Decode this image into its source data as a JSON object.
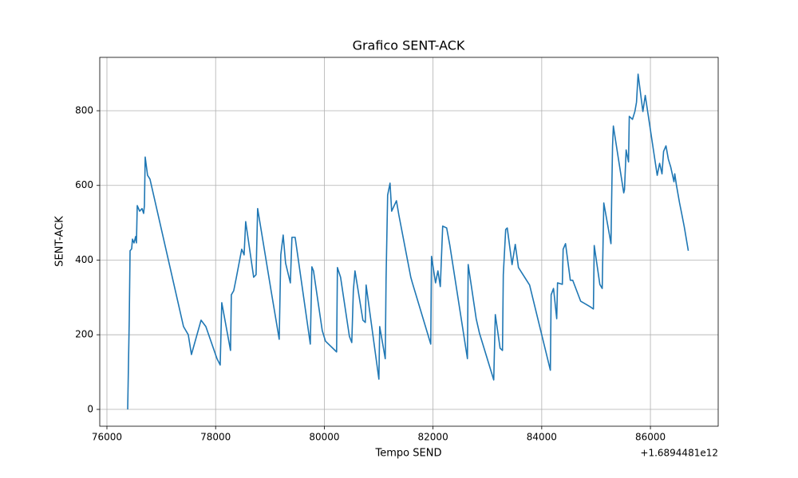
{
  "chart_data": {
    "type": "line",
    "title": "Grafico SENT-ACK",
    "x_label": "Tempo SEND",
    "y_label": "SENT-ACK",
    "x_offset_label": "+1.6894481e12",
    "grid": true,
    "xlim": [
      75868,
      87247
    ],
    "ylim": [
      -45,
      943
    ],
    "xticks": [
      76000,
      78000,
      80000,
      82000,
      84000,
      86000
    ],
    "yticks": [
      0,
      200,
      400,
      600,
      800
    ],
    "x": [
      76382,
      76411,
      76426,
      76455,
      76470,
      76499,
      76528,
      76543,
      76558,
      76602,
      76646,
      76675,
      76690,
      76704,
      76748,
      76792,
      77409,
      77497,
      77555,
      77732,
      77820,
      78025,
      78084,
      78113,
      78274,
      78289,
      78333,
      78377,
      78480,
      78524,
      78553,
      78700,
      78744,
      78773,
      79023,
      79170,
      79199,
      79243,
      79287,
      79375,
      79404,
      79463,
      79742,
      79771,
      79801,
      79962,
      80021,
      80226,
      80241,
      80299,
      80461,
      80505,
      80534,
      80564,
      80710,
      80754,
      80769,
      81004,
      81019,
      81121,
      81136,
      81165,
      81209,
      81239,
      81327,
      81371,
      81591,
      81620,
      81958,
      81972,
      82046,
      82090,
      82134,
      82178,
      82251,
      82310,
      82633,
      82647,
      82794,
      82853,
      83117,
      83146,
      83234,
      83278,
      83293,
      83337,
      83366,
      83454,
      83513,
      83572,
      83777,
      84159,
      84173,
      84217,
      84276,
      84291,
      84379,
      84394,
      84438,
      84526,
      84570,
      84716,
      84892,
      84951,
      84966,
      85069,
      85113,
      85142,
      85215,
      85274,
      85289,
      85303,
      85318,
      85406,
      85509,
      85523,
      85553,
      85597,
      85611,
      85641,
      85670,
      85714,
      85744,
      85773,
      85861,
      85905,
      86125,
      86169,
      86213,
      86242,
      86286,
      86330,
      86374,
      86433,
      86448,
      86477,
      86536,
      86580,
      86624,
      86697
    ],
    "series": [
      {
        "color": "#1f77b4",
        "values": [
          0,
          243,
          425,
          430,
          456,
          446,
          463,
          446,
          546,
          531,
          538,
          525,
          546,
          676,
          627,
          617,
          222,
          200,
          147,
          239,
          222,
          136,
          119,
          286,
          158,
          307,
          318,
          350,
          429,
          414,
          503,
          354,
          361,
          538,
          316,
          188,
          414,
          467,
          392,
          339,
          461,
          461,
          175,
          382,
          371,
          211,
          183,
          154,
          380,
          354,
          196,
          179,
          318,
          371,
          239,
          233,
          333,
          81,
          222,
          136,
          350,
          574,
          606,
          531,
          559,
          521,
          354,
          339,
          175,
          410,
          339,
          371,
          329,
          491,
          486,
          439,
          136,
          388,
          243,
          205,
          79,
          254,
          164,
          158,
          361,
          482,
          486,
          388,
          442,
          380,
          333,
          105,
          307,
          324,
          243,
          339,
          335,
          429,
          444,
          346,
          346,
          290,
          275,
          269,
          439,
          335,
          324,
          553,
          493,
          444,
          584,
          706,
          759,
          676,
          580,
          589,
          695,
          663,
          785,
          781,
          777,
          798,
          823,
          898,
          798,
          841,
          627,
          659,
          631,
          691,
          706,
          670,
          649,
          610,
          631,
          602,
          553,
          521,
          488,
          425
        ]
      }
    ]
  }
}
